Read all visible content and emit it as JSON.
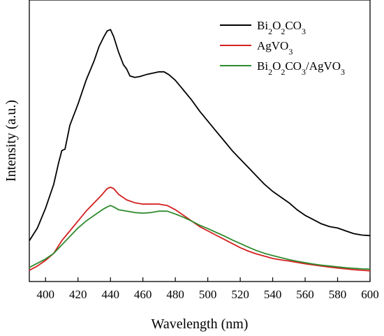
{
  "chart_data": {
    "type": "line",
    "xlabel": "Wavelength (nm)",
    "ylabel": "Intensity (a.u.)",
    "xlim": [
      390,
      600
    ],
    "ylim": [
      0,
      1
    ],
    "x_ticks": [
      400,
      420,
      440,
      460,
      480,
      500,
      520,
      540,
      560,
      580,
      600
    ],
    "y_ticks_shown": false,
    "grid": false,
    "legend_position": "top-right",
    "series": [
      {
        "name": "Bi2O2CO3",
        "color": "#000000",
        "points": [
          [
            390,
            0.145
          ],
          [
            395,
            0.19
          ],
          [
            400,
            0.26
          ],
          [
            405,
            0.345
          ],
          [
            408,
            0.42
          ],
          [
            410,
            0.465
          ],
          [
            412,
            0.47
          ],
          [
            415,
            0.555
          ],
          [
            420,
            0.63
          ],
          [
            425,
            0.715
          ],
          [
            430,
            0.785
          ],
          [
            433,
            0.835
          ],
          [
            436,
            0.87
          ],
          [
            438,
            0.89
          ],
          [
            440,
            0.895
          ],
          [
            442,
            0.87
          ],
          [
            445,
            0.815
          ],
          [
            448,
            0.77
          ],
          [
            450,
            0.755
          ],
          [
            452,
            0.73
          ],
          [
            455,
            0.725
          ],
          [
            458,
            0.728
          ],
          [
            462,
            0.735
          ],
          [
            466,
            0.74
          ],
          [
            470,
            0.745
          ],
          [
            473,
            0.745
          ],
          [
            476,
            0.735
          ],
          [
            480,
            0.715
          ],
          [
            485,
            0.68
          ],
          [
            490,
            0.645
          ],
          [
            495,
            0.605
          ],
          [
            500,
            0.57
          ],
          [
            505,
            0.535
          ],
          [
            510,
            0.5
          ],
          [
            515,
            0.465
          ],
          [
            520,
            0.435
          ],
          [
            525,
            0.405
          ],
          [
            530,
            0.375
          ],
          [
            535,
            0.345
          ],
          [
            540,
            0.32
          ],
          [
            545,
            0.3
          ],
          [
            550,
            0.28
          ],
          [
            555,
            0.255
          ],
          [
            560,
            0.235
          ],
          [
            565,
            0.22
          ],
          [
            570,
            0.205
          ],
          [
            575,
            0.195
          ],
          [
            580,
            0.19
          ],
          [
            585,
            0.18
          ],
          [
            590,
            0.17
          ],
          [
            595,
            0.165
          ],
          [
            600,
            0.163
          ]
        ]
      },
      {
        "name": "AgVO3",
        "color": "#d42020",
        "points": [
          [
            390,
            0.04
          ],
          [
            395,
            0.055
          ],
          [
            400,
            0.075
          ],
          [
            405,
            0.1
          ],
          [
            410,
            0.145
          ],
          [
            415,
            0.18
          ],
          [
            420,
            0.215
          ],
          [
            425,
            0.25
          ],
          [
            430,
            0.28
          ],
          [
            435,
            0.31
          ],
          [
            438,
            0.33
          ],
          [
            440,
            0.335
          ],
          [
            442,
            0.33
          ],
          [
            445,
            0.31
          ],
          [
            450,
            0.29
          ],
          [
            455,
            0.28
          ],
          [
            460,
            0.275
          ],
          [
            465,
            0.275
          ],
          [
            470,
            0.275
          ],
          [
            475,
            0.27
          ],
          [
            480,
            0.255
          ],
          [
            485,
            0.235
          ],
          [
            490,
            0.215
          ],
          [
            495,
            0.195
          ],
          [
            500,
            0.18
          ],
          [
            505,
            0.165
          ],
          [
            510,
            0.15
          ],
          [
            515,
            0.135
          ],
          [
            520,
            0.12
          ],
          [
            525,
            0.108
          ],
          [
            530,
            0.098
          ],
          [
            535,
            0.09
          ],
          [
            540,
            0.082
          ],
          [
            545,
            0.077
          ],
          [
            550,
            0.073
          ],
          [
            555,
            0.068
          ],
          [
            560,
            0.063
          ],
          [
            565,
            0.059
          ],
          [
            570,
            0.055
          ],
          [
            575,
            0.051
          ],
          [
            580,
            0.048
          ],
          [
            585,
            0.045
          ],
          [
            590,
            0.042
          ],
          [
            595,
            0.04
          ],
          [
            600,
            0.038
          ]
        ]
      },
      {
        "name": "Bi2O2CO3/AgVO3",
        "color": "#2e8b2e",
        "points": [
          [
            390,
            0.05
          ],
          [
            395,
            0.065
          ],
          [
            400,
            0.08
          ],
          [
            405,
            0.1
          ],
          [
            410,
            0.13
          ],
          [
            415,
            0.16
          ],
          [
            420,
            0.19
          ],
          [
            425,
            0.215
          ],
          [
            430,
            0.235
          ],
          [
            435,
            0.255
          ],
          [
            438,
            0.265
          ],
          [
            440,
            0.27
          ],
          [
            442,
            0.265
          ],
          [
            445,
            0.255
          ],
          [
            450,
            0.25
          ],
          [
            455,
            0.245
          ],
          [
            460,
            0.243
          ],
          [
            465,
            0.245
          ],
          [
            470,
            0.25
          ],
          [
            475,
            0.25
          ],
          [
            480,
            0.24
          ],
          [
            485,
            0.228
          ],
          [
            490,
            0.215
          ],
          [
            495,
            0.2
          ],
          [
            500,
            0.188
          ],
          [
            505,
            0.175
          ],
          [
            510,
            0.162
          ],
          [
            515,
            0.148
          ],
          [
            520,
            0.135
          ],
          [
            525,
            0.122
          ],
          [
            530,
            0.11
          ],
          [
            535,
            0.1
          ],
          [
            540,
            0.092
          ],
          [
            545,
            0.085
          ],
          [
            550,
            0.078
          ],
          [
            555,
            0.072
          ],
          [
            560,
            0.067
          ],
          [
            565,
            0.062
          ],
          [
            570,
            0.058
          ],
          [
            575,
            0.055
          ],
          [
            580,
            0.052
          ],
          [
            585,
            0.049
          ],
          [
            590,
            0.047
          ],
          [
            595,
            0.045
          ],
          [
            600,
            0.044
          ]
        ]
      }
    ]
  }
}
